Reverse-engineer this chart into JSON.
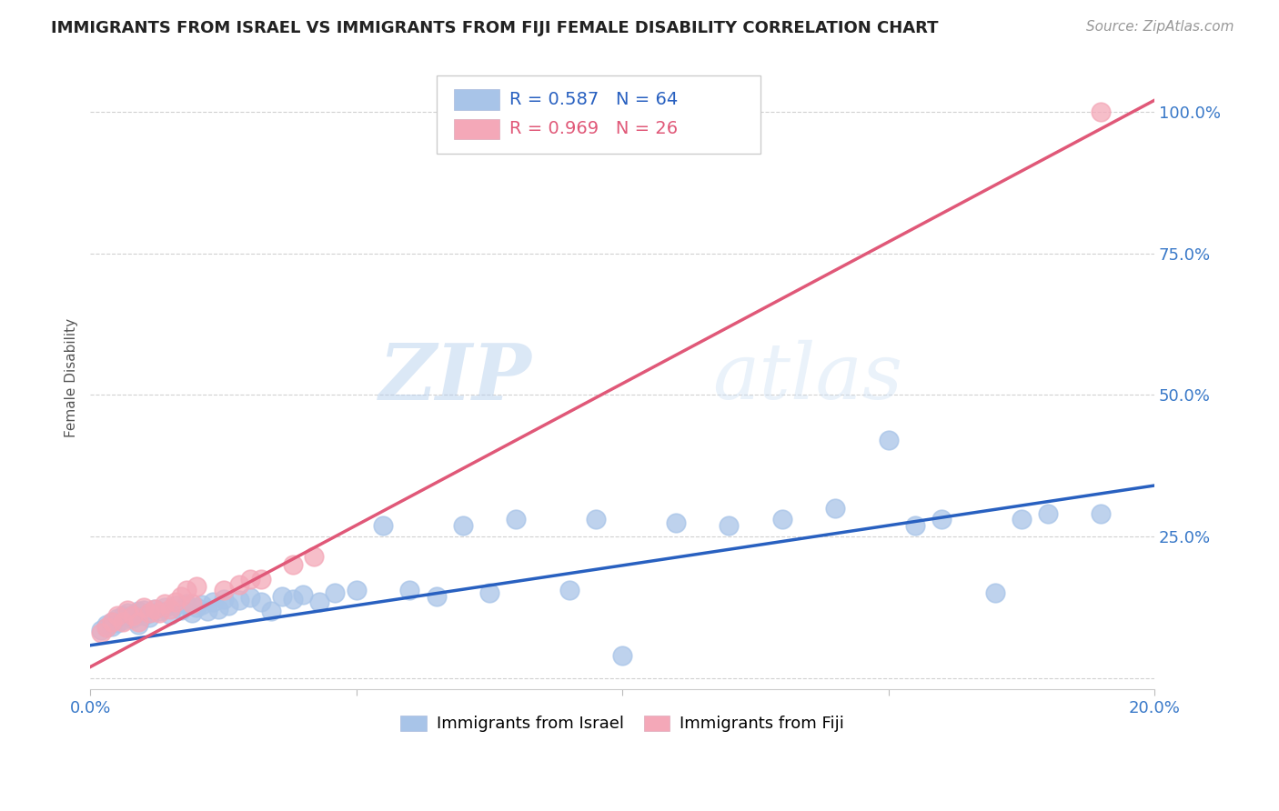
{
  "title": "IMMIGRANTS FROM ISRAEL VS IMMIGRANTS FROM FIJI FEMALE DISABILITY CORRELATION CHART",
  "source": "Source: ZipAtlas.com",
  "ylabel": "Female Disability",
  "xlim": [
    0.0,
    0.2
  ],
  "ylim": [
    -0.02,
    1.08
  ],
  "watermark_zip": "ZIP",
  "watermark_atlas": "atlas",
  "legend_israel_R": "0.587",
  "legend_israel_N": "64",
  "legend_fiji_R": "0.969",
  "legend_fiji_N": "26",
  "israel_color": "#a8c4e8",
  "fiji_color": "#f4a8b8",
  "israel_line_color": "#2860c0",
  "fiji_line_color": "#e05878",
  "background_color": "#ffffff",
  "israel_scatter_x": [
    0.002,
    0.003,
    0.003,
    0.004,
    0.004,
    0.005,
    0.005,
    0.006,
    0.006,
    0.007,
    0.007,
    0.008,
    0.008,
    0.009,
    0.009,
    0.01,
    0.01,
    0.011,
    0.011,
    0.012,
    0.013,
    0.014,
    0.015,
    0.016,
    0.017,
    0.018,
    0.019,
    0.02,
    0.021,
    0.022,
    0.023,
    0.024,
    0.025,
    0.026,
    0.028,
    0.03,
    0.032,
    0.034,
    0.036,
    0.038,
    0.04,
    0.043,
    0.046,
    0.05,
    0.055,
    0.06,
    0.065,
    0.07,
    0.075,
    0.08,
    0.09,
    0.095,
    0.1,
    0.11,
    0.12,
    0.13,
    0.14,
    0.15,
    0.155,
    0.16,
    0.17,
    0.175,
    0.18,
    0.19
  ],
  "israel_scatter_y": [
    0.085,
    0.09,
    0.095,
    0.1,
    0.092,
    0.105,
    0.098,
    0.11,
    0.102,
    0.108,
    0.115,
    0.106,
    0.112,
    0.095,
    0.118,
    0.11,
    0.12,
    0.115,
    0.108,
    0.122,
    0.118,
    0.125,
    0.112,
    0.128,
    0.12,
    0.132,
    0.115,
    0.125,
    0.13,
    0.118,
    0.135,
    0.122,
    0.14,
    0.128,
    0.138,
    0.142,
    0.135,
    0.118,
    0.145,
    0.14,
    0.148,
    0.135,
    0.15,
    0.155,
    0.27,
    0.155,
    0.145,
    0.27,
    0.15,
    0.28,
    0.155,
    0.28,
    0.04,
    0.275,
    0.27,
    0.28,
    0.3,
    0.42,
    0.27,
    0.28,
    0.15,
    0.28,
    0.29,
    0.29
  ],
  "fiji_scatter_x": [
    0.002,
    0.003,
    0.004,
    0.005,
    0.006,
    0.007,
    0.008,
    0.009,
    0.01,
    0.011,
    0.012,
    0.013,
    0.014,
    0.015,
    0.016,
    0.017,
    0.018,
    0.019,
    0.02,
    0.025,
    0.028,
    0.03,
    0.032,
    0.038,
    0.042,
    0.19
  ],
  "fiji_scatter_y": [
    0.08,
    0.09,
    0.1,
    0.11,
    0.1,
    0.12,
    0.11,
    0.1,
    0.125,
    0.115,
    0.122,
    0.115,
    0.132,
    0.122,
    0.135,
    0.145,
    0.155,
    0.132,
    0.162,
    0.155,
    0.165,
    0.175,
    0.175,
    0.2,
    0.215,
    1.0
  ],
  "israel_line_x": [
    0.0,
    0.2
  ],
  "israel_line_y": [
    0.058,
    0.34
  ],
  "fiji_line_x": [
    0.0,
    0.2
  ],
  "fiji_line_y": [
    0.02,
    1.02
  ],
  "grid_yticks": [
    0.0,
    0.25,
    0.5,
    0.75,
    1.0
  ],
  "right_ytick_labels": [
    "",
    "25.0%",
    "50.0%",
    "75.0%",
    "100.0%"
  ],
  "xtick_labels": [
    "0.0%",
    "",
    "",
    "",
    "20.0%"
  ]
}
